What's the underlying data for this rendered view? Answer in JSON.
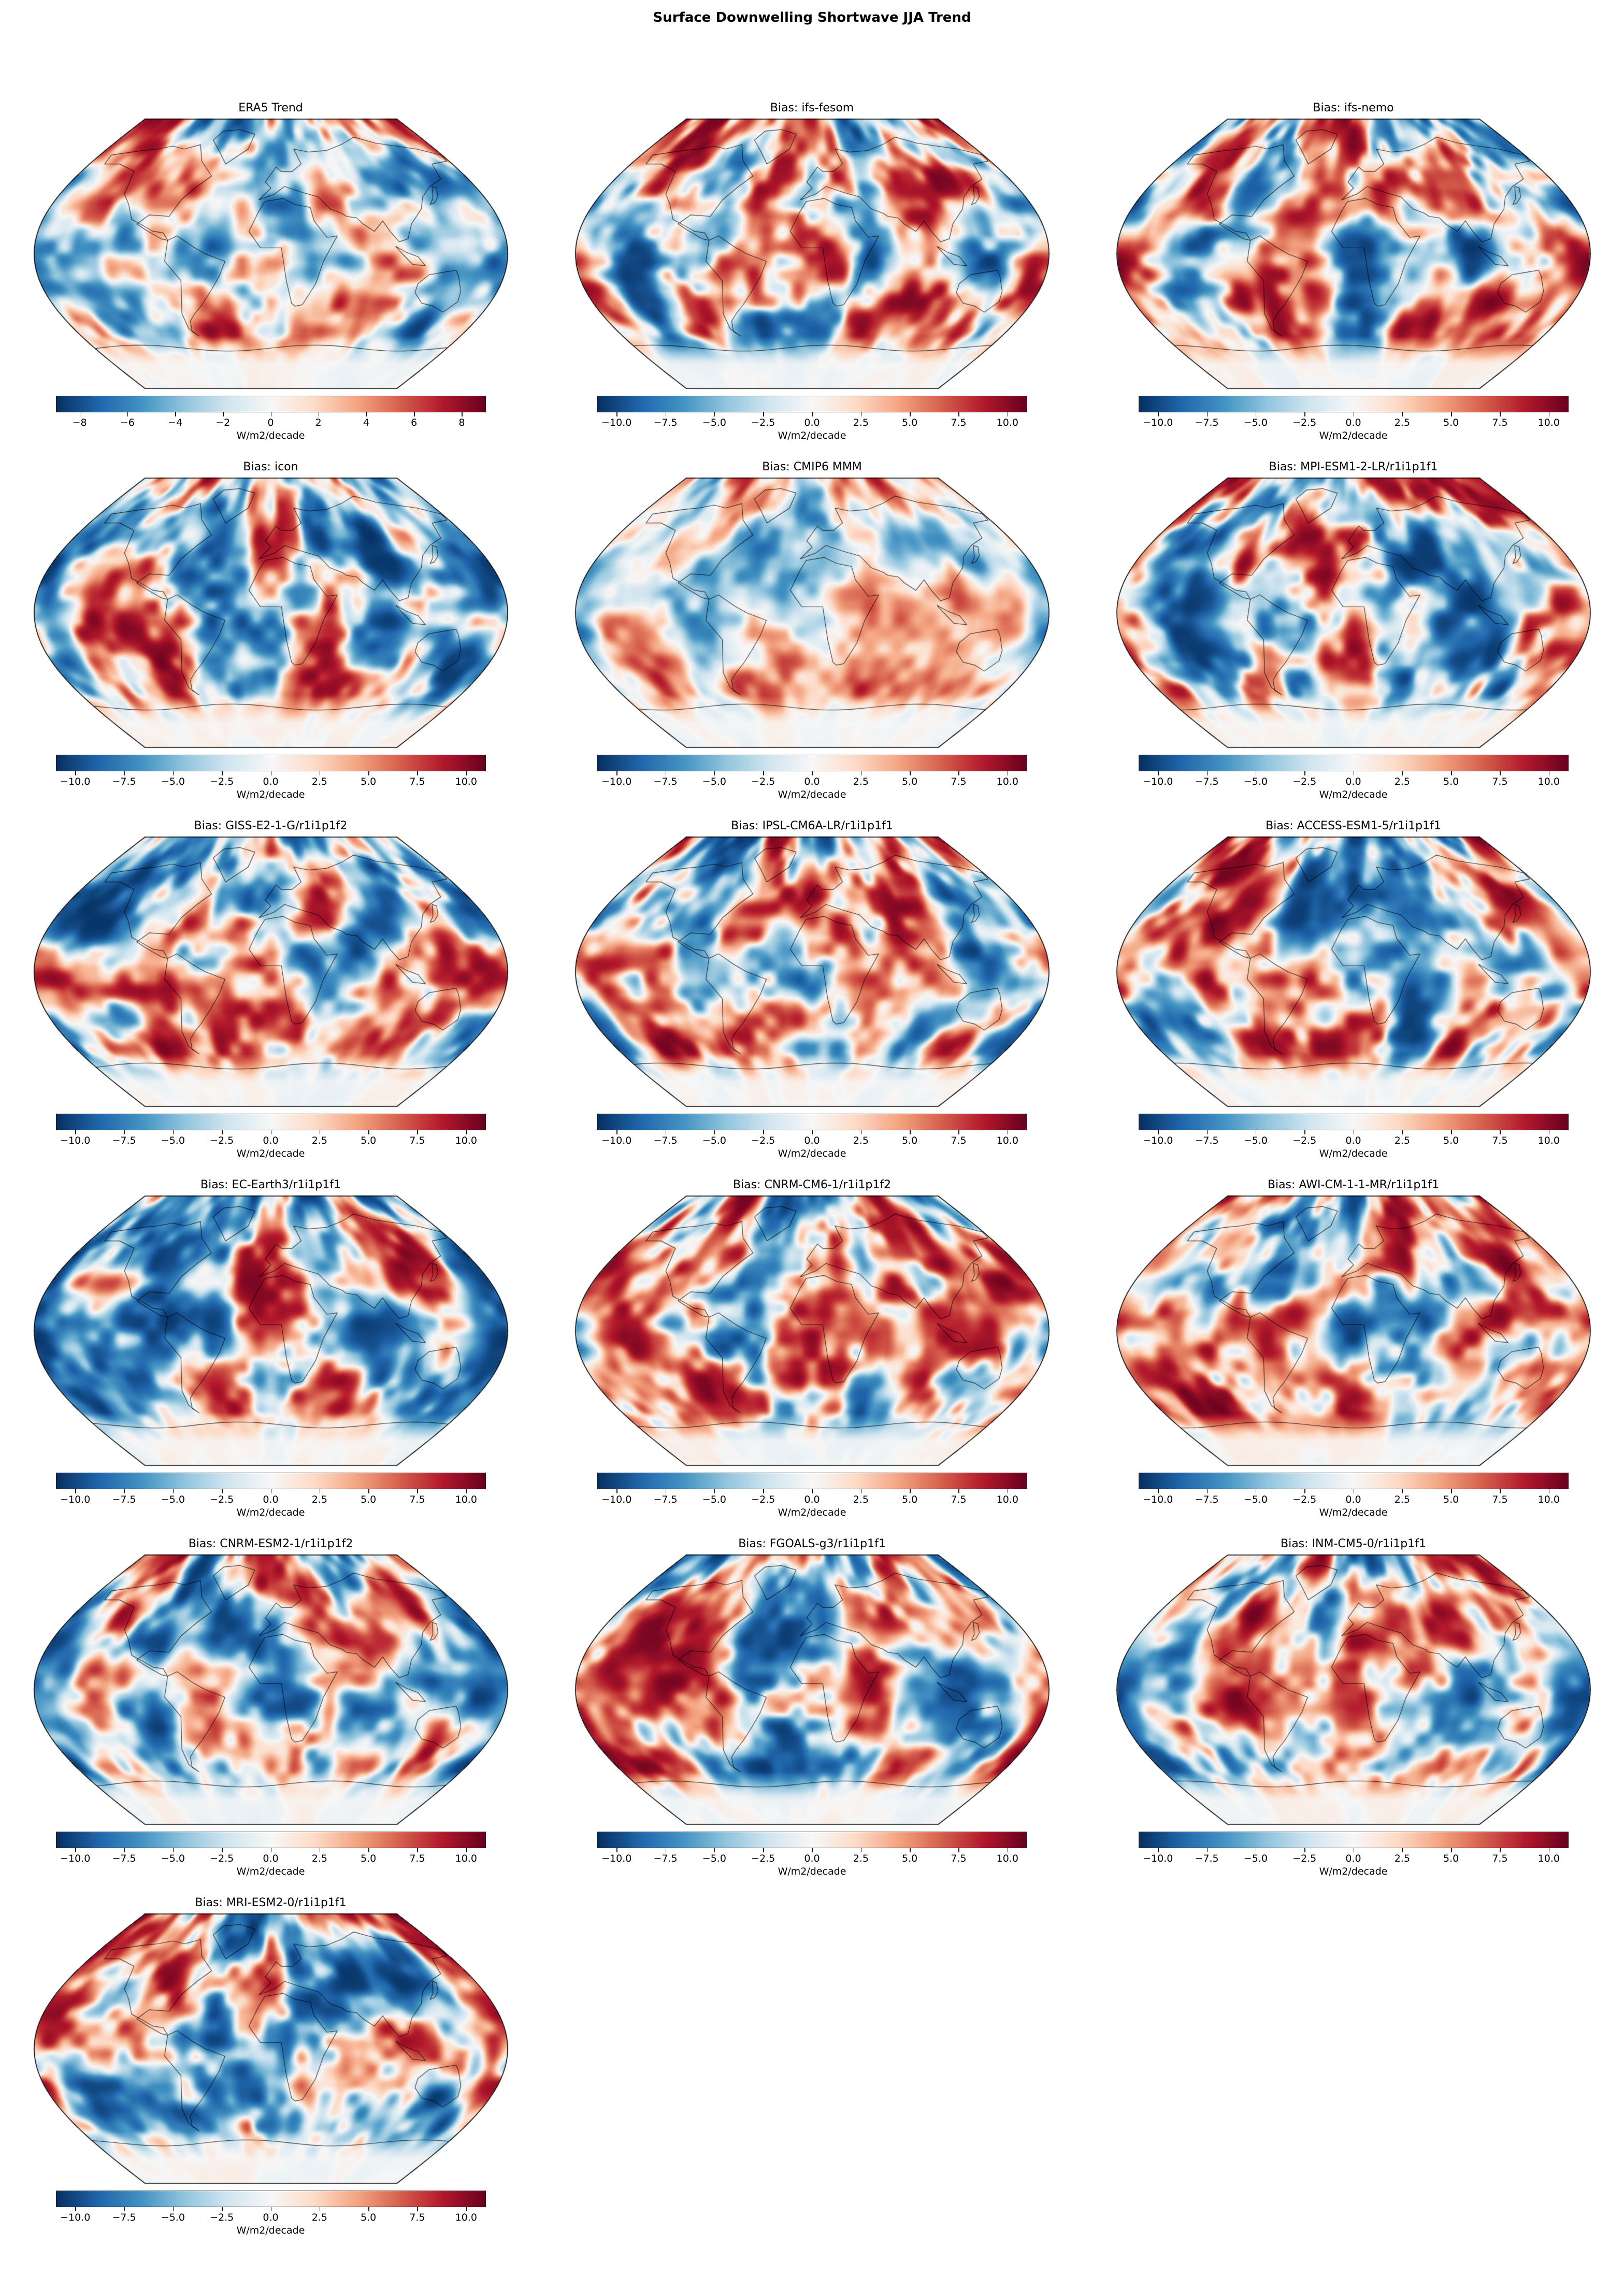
{
  "figure": {
    "title": "Surface Downwelling Shortwave JJA Trend"
  },
  "colorbar": {
    "unit": "W/m2/decade"
  },
  "colormap": {
    "name": "RdBu (blue = negative, red = positive)",
    "stops": [
      "#053061",
      "#2166ac",
      "#4393c3",
      "#92c5de",
      "#d1e5f0",
      "#f7f7f7",
      "#fddbc7",
      "#f4a582",
      "#d6604d",
      "#b2182b",
      "#67001f"
    ]
  },
  "panels": [
    {
      "title": "ERA5 Trend",
      "vmin": -9,
      "vmax": 9,
      "ticks": [
        -8,
        -6,
        -4,
        -2,
        0,
        2,
        4,
        6,
        8
      ],
      "tick_labels": [
        "−8",
        "−6",
        "−4",
        "−2",
        "0",
        "2",
        "4",
        "6",
        "8"
      ]
    },
    {
      "title": "Bias: ifs-fesom",
      "vmin": -11,
      "vmax": 11,
      "ticks": [
        -10,
        -7.5,
        -5,
        -2.5,
        0,
        2.5,
        5,
        7.5,
        10
      ],
      "tick_labels": [
        "−10.0",
        "−7.5",
        "−5.0",
        "−2.5",
        "0.0",
        "2.5",
        "5.0",
        "7.5",
        "10.0"
      ]
    },
    {
      "title": "Bias: ifs-nemo",
      "vmin": -11,
      "vmax": 11,
      "ticks": [
        -10,
        -7.5,
        -5,
        -2.5,
        0,
        2.5,
        5,
        7.5,
        10
      ],
      "tick_labels": [
        "−10.0",
        "−7.5",
        "−5.0",
        "−2.5",
        "0.0",
        "2.5",
        "5.0",
        "7.5",
        "10.0"
      ]
    },
    {
      "title": "Bias: icon",
      "vmin": -11,
      "vmax": 11,
      "ticks": [
        -10,
        -7.5,
        -5,
        -2.5,
        0,
        2.5,
        5,
        7.5,
        10
      ],
      "tick_labels": [
        "−10.0",
        "−7.5",
        "−5.0",
        "−2.5",
        "0.0",
        "2.5",
        "5.0",
        "7.5",
        "10.0"
      ]
    },
    {
      "title": "Bias: CMIP6 MMM",
      "vmin": -11,
      "vmax": 11,
      "ticks": [
        -10,
        -7.5,
        -5,
        -2.5,
        0,
        2.5,
        5,
        7.5,
        10
      ],
      "tick_labels": [
        "−10.0",
        "−7.5",
        "−5.0",
        "−2.5",
        "0.0",
        "2.5",
        "5.0",
        "7.5",
        "10.0"
      ]
    },
    {
      "title": "Bias: MPI-ESM1-2-LR/r1i1p1f1",
      "vmin": -11,
      "vmax": 11,
      "ticks": [
        -10,
        -7.5,
        -5,
        -2.5,
        0,
        2.5,
        5,
        7.5,
        10
      ],
      "tick_labels": [
        "−10.0",
        "−7.5",
        "−5.0",
        "−2.5",
        "0.0",
        "2.5",
        "5.0",
        "7.5",
        "10.0"
      ]
    },
    {
      "title": "Bias: GISS-E2-1-G/r1i1p1f2",
      "vmin": -11,
      "vmax": 11,
      "ticks": [
        -10,
        -7.5,
        -5,
        -2.5,
        0,
        2.5,
        5,
        7.5,
        10
      ],
      "tick_labels": [
        "−10.0",
        "−7.5",
        "−5.0",
        "−2.5",
        "0.0",
        "2.5",
        "5.0",
        "7.5",
        "10.0"
      ]
    },
    {
      "title": "Bias: IPSL-CM6A-LR/r1i1p1f1",
      "vmin": -11,
      "vmax": 11,
      "ticks": [
        -10,
        -7.5,
        -5,
        -2.5,
        0,
        2.5,
        5,
        7.5,
        10
      ],
      "tick_labels": [
        "−10.0",
        "−7.5",
        "−5.0",
        "−2.5",
        "0.0",
        "2.5",
        "5.0",
        "7.5",
        "10.0"
      ]
    },
    {
      "title": "Bias: ACCESS-ESM1-5/r1i1p1f1",
      "vmin": -11,
      "vmax": 11,
      "ticks": [
        -10,
        -7.5,
        -5,
        -2.5,
        0,
        2.5,
        5,
        7.5,
        10
      ],
      "tick_labels": [
        "−10.0",
        "−7.5",
        "−5.0",
        "−2.5",
        "0.0",
        "2.5",
        "5.0",
        "7.5",
        "10.0"
      ]
    },
    {
      "title": "Bias: EC-Earth3/r1i1p1f1",
      "vmin": -11,
      "vmax": 11,
      "ticks": [
        -10,
        -7.5,
        -5,
        -2.5,
        0,
        2.5,
        5,
        7.5,
        10
      ],
      "tick_labels": [
        "−10.0",
        "−7.5",
        "−5.0",
        "−2.5",
        "0.0",
        "2.5",
        "5.0",
        "7.5",
        "10.0"
      ]
    },
    {
      "title": "Bias: CNRM-CM6-1/r1i1p1f2",
      "vmin": -11,
      "vmax": 11,
      "ticks": [
        -10,
        -7.5,
        -5,
        -2.5,
        0,
        2.5,
        5,
        7.5,
        10
      ],
      "tick_labels": [
        "−10.0",
        "−7.5",
        "−5.0",
        "−2.5",
        "0.0",
        "2.5",
        "5.0",
        "7.5",
        "10.0"
      ]
    },
    {
      "title": "Bias: AWI-CM-1-1-MR/r1i1p1f1",
      "vmin": -11,
      "vmax": 11,
      "ticks": [
        -10,
        -7.5,
        -5,
        -2.5,
        0,
        2.5,
        5,
        7.5,
        10
      ],
      "tick_labels": [
        "−10.0",
        "−7.5",
        "−5.0",
        "−2.5",
        "0.0",
        "2.5",
        "5.0",
        "7.5",
        "10.0"
      ]
    },
    {
      "title": "Bias: CNRM-ESM2-1/r1i1p1f2",
      "vmin": -11,
      "vmax": 11,
      "ticks": [
        -10,
        -7.5,
        -5,
        -2.5,
        0,
        2.5,
        5,
        7.5,
        10
      ],
      "tick_labels": [
        "−10.0",
        "−7.5",
        "−5.0",
        "−2.5",
        "0.0",
        "2.5",
        "5.0",
        "7.5",
        "10.0"
      ]
    },
    {
      "title": "Bias: FGOALS-g3/r1i1p1f1",
      "vmin": -11,
      "vmax": 11,
      "ticks": [
        -10,
        -7.5,
        -5,
        -2.5,
        0,
        2.5,
        5,
        7.5,
        10
      ],
      "tick_labels": [
        "−10.0",
        "−7.5",
        "−5.0",
        "−2.5",
        "0.0",
        "2.5",
        "5.0",
        "7.5",
        "10.0"
      ]
    },
    {
      "title": "Bias: INM-CM5-0/r1i1p1f1",
      "vmin": -11,
      "vmax": 11,
      "ticks": [
        -10,
        -7.5,
        -5,
        -2.5,
        0,
        2.5,
        5,
        7.5,
        10
      ],
      "tick_labels": [
        "−10.0",
        "−7.5",
        "−5.0",
        "−2.5",
        "0.0",
        "2.5",
        "5.0",
        "7.5",
        "10.0"
      ]
    },
    {
      "title": "Bias: MRI-ESM2-0/r1i1p1f1",
      "vmin": -11,
      "vmax": 11,
      "ticks": [
        -10,
        -7.5,
        -5,
        -2.5,
        0,
        2.5,
        5,
        7.5,
        10
      ],
      "tick_labels": [
        "−10.0",
        "−7.5",
        "−5.0",
        "−2.5",
        "0.0",
        "2.5",
        "5.0",
        "7.5",
        "10.0"
      ]
    }
  ],
  "chart_data": {
    "type": "heatmap",
    "subtype": "global-map-small-multiples",
    "title": "Surface Downwelling Shortwave JJA Trend",
    "projection": "robinson",
    "colormap": "RdBu reversed (blue = negative, red = positive)",
    "units": "W/m2/decade",
    "grid": {
      "columns": 3,
      "rows": 6,
      "panel_count": 16
    },
    "panels": [
      {
        "title": "ERA5 Trend",
        "colorbar_ticks": [
          -8,
          -6,
          -4,
          -2,
          0,
          2,
          4,
          6,
          8
        ],
        "colorbar_range": [
          -9,
          9
        ]
      },
      {
        "title": "Bias: ifs-fesom",
        "colorbar_ticks": [
          -10,
          -7.5,
          -5,
          -2.5,
          0,
          2.5,
          5,
          7.5,
          10
        ],
        "colorbar_range": [
          -11,
          11
        ]
      },
      {
        "title": "Bias: ifs-nemo",
        "colorbar_ticks": [
          -10,
          -7.5,
          -5,
          -2.5,
          0,
          2.5,
          5,
          7.5,
          10
        ],
        "colorbar_range": [
          -11,
          11
        ]
      },
      {
        "title": "Bias: icon",
        "colorbar_ticks": [
          -10,
          -7.5,
          -5,
          -2.5,
          0,
          2.5,
          5,
          7.5,
          10
        ],
        "colorbar_range": [
          -11,
          11
        ]
      },
      {
        "title": "Bias: CMIP6 MMM",
        "colorbar_ticks": [
          -10,
          -7.5,
          -5,
          -2.5,
          0,
          2.5,
          5,
          7.5,
          10
        ],
        "colorbar_range": [
          -11,
          11
        ]
      },
      {
        "title": "Bias: MPI-ESM1-2-LR/r1i1p1f1",
        "colorbar_ticks": [
          -10,
          -7.5,
          -5,
          -2.5,
          0,
          2.5,
          5,
          7.5,
          10
        ],
        "colorbar_range": [
          -11,
          11
        ]
      },
      {
        "title": "Bias: GISS-E2-1-G/r1i1p1f2",
        "colorbar_ticks": [
          -10,
          -7.5,
          -5,
          -2.5,
          0,
          2.5,
          5,
          7.5,
          10
        ],
        "colorbar_range": [
          -11,
          11
        ]
      },
      {
        "title": "Bias: IPSL-CM6A-LR/r1i1p1f1",
        "colorbar_ticks": [
          -10,
          -7.5,
          -5,
          -2.5,
          0,
          2.5,
          5,
          7.5,
          10
        ],
        "colorbar_range": [
          -11,
          11
        ]
      },
      {
        "title": "Bias: ACCESS-ESM1-5/r1i1p1f1",
        "colorbar_ticks": [
          -10,
          -7.5,
          -5,
          -2.5,
          0,
          2.5,
          5,
          7.5,
          10
        ],
        "colorbar_range": [
          -11,
          11
        ]
      },
      {
        "title": "Bias: EC-Earth3/r1i1p1f1",
        "colorbar_ticks": [
          -10,
          -7.5,
          -5,
          -2.5,
          0,
          2.5,
          5,
          7.5,
          10
        ],
        "colorbar_range": [
          -11,
          11
        ]
      },
      {
        "title": "Bias: CNRM-CM6-1/r1i1p1f2",
        "colorbar_ticks": [
          -10,
          -7.5,
          -5,
          -2.5,
          0,
          2.5,
          5,
          7.5,
          10
        ],
        "colorbar_range": [
          -11,
          11
        ]
      },
      {
        "title": "Bias: AWI-CM-1-1-MR/r1i1p1f1",
        "colorbar_ticks": [
          -10,
          -7.5,
          -5,
          -2.5,
          0,
          2.5,
          5,
          7.5,
          10
        ],
        "colorbar_range": [
          -11,
          11
        ]
      },
      {
        "title": "Bias: CNRM-ESM2-1/r1i1p1f2",
        "colorbar_ticks": [
          -10,
          -7.5,
          -5,
          -2.5,
          0,
          2.5,
          5,
          7.5,
          10
        ],
        "colorbar_range": [
          -11,
          11
        ]
      },
      {
        "title": "Bias: FGOALS-g3/r1i1p1f1",
        "colorbar_ticks": [
          -10,
          -7.5,
          -5,
          -2.5,
          0,
          2.5,
          5,
          7.5,
          10
        ],
        "colorbar_range": [
          -11,
          11
        ]
      },
      {
        "title": "Bias: INM-CM5-0/r1i1p1f1",
        "colorbar_ticks": [
          -10,
          -7.5,
          -5,
          -2.5,
          0,
          2.5,
          5,
          7.5,
          10
        ],
        "colorbar_range": [
          -11,
          11
        ]
      },
      {
        "title": "Bias: MRI-ESM2-0/r1i1p1f1",
        "colorbar_ticks": [
          -10,
          -7.5,
          -5,
          -2.5,
          0,
          2.5,
          5,
          7.5,
          10
        ],
        "colorbar_range": [
          -11,
          11
        ]
      }
    ]
  }
}
